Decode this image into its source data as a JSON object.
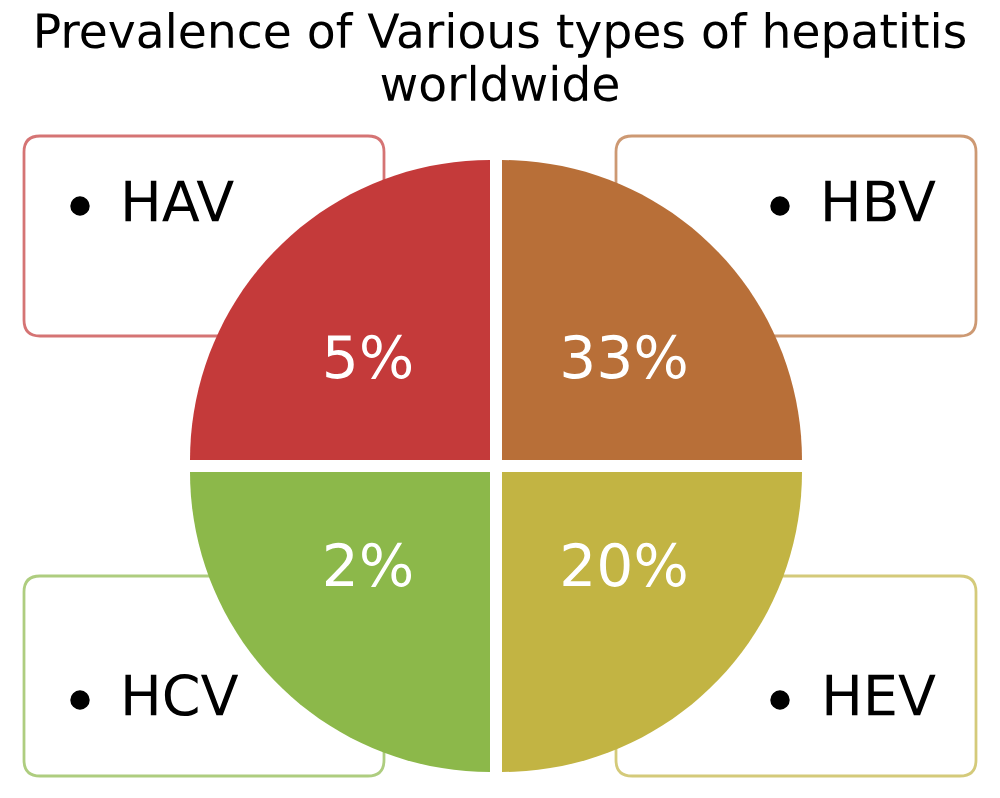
{
  "chart_data": {
    "type": "other",
    "title": "Prevalence of Various types of hepatitis worldwide",
    "categories": [
      "HAV",
      "HBV",
      "HCV",
      "HEV"
    ],
    "values": [
      5,
      33,
      2,
      20
    ],
    "value_labels": [
      "5%",
      "33%",
      "2%",
      "20%"
    ],
    "colors": [
      "#c43a3a",
      "#b86f38",
      "#8cb84a",
      "#c2b443"
    ]
  }
}
